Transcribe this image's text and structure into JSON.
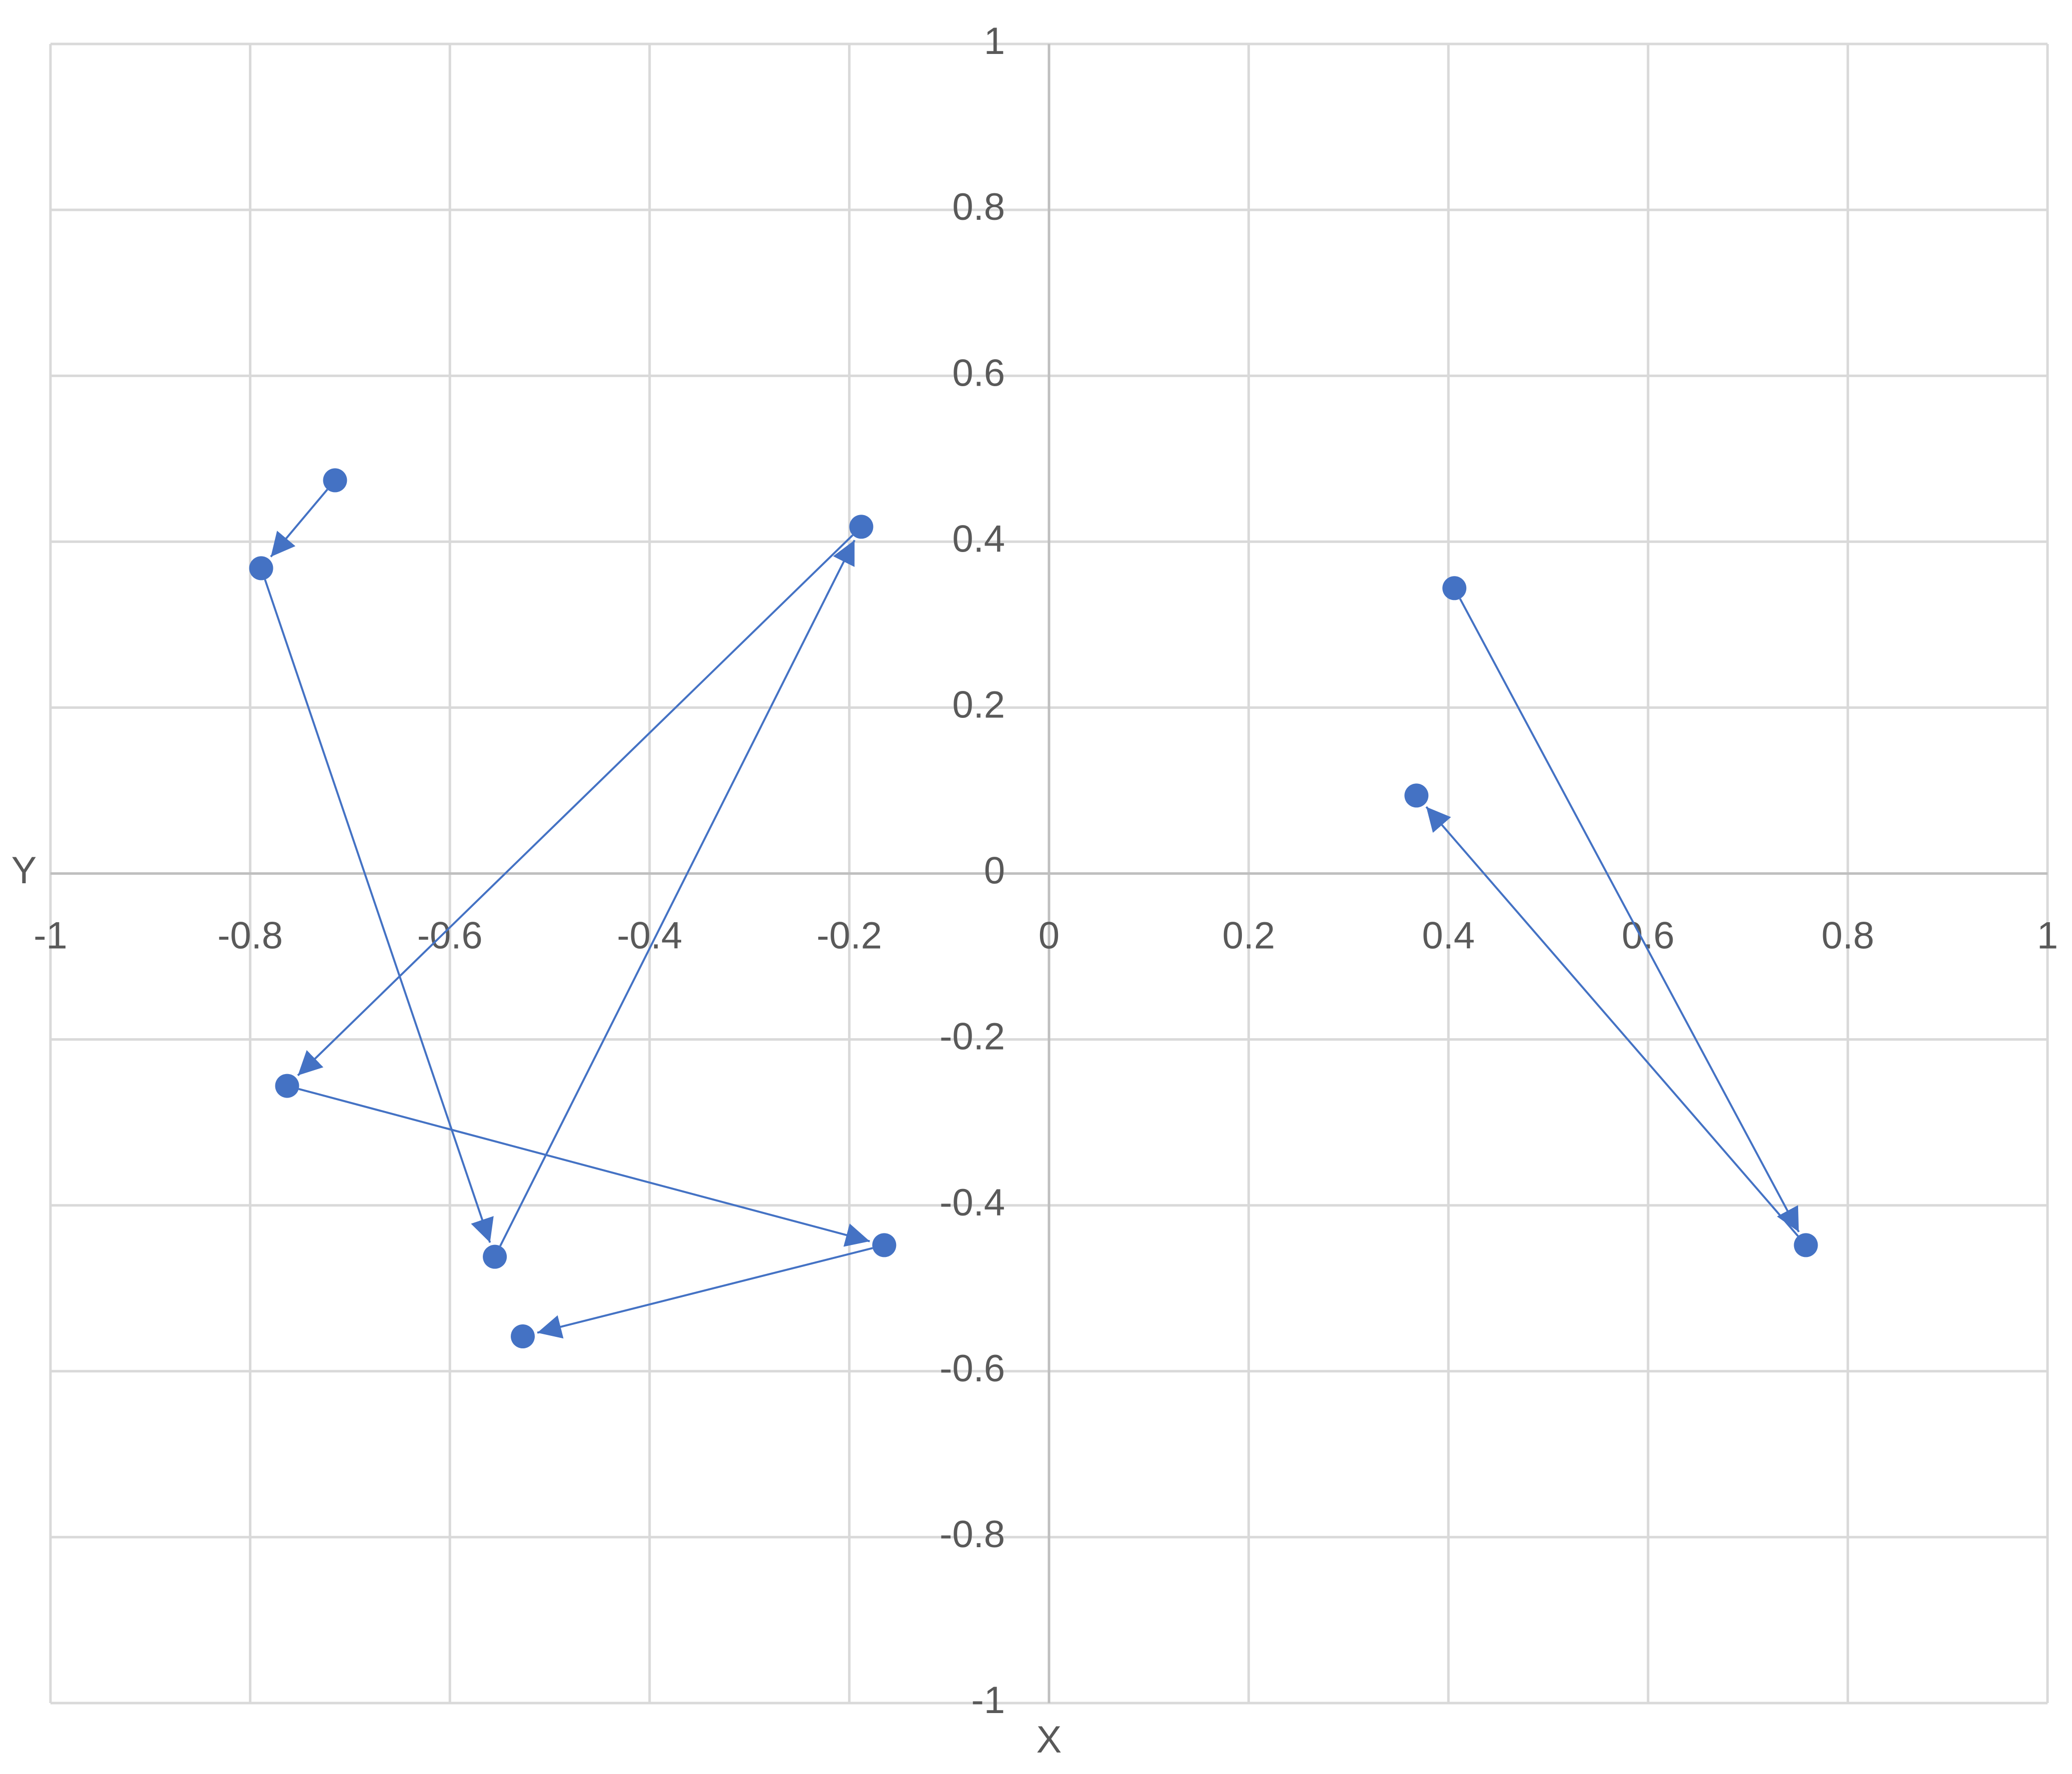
{
  "chart_data": {
    "type": "scatter",
    "x_label": "X",
    "y_label": "Y",
    "xlim": [
      -1,
      1
    ],
    "ylim": [
      -1,
      1
    ],
    "xticks": [
      -1,
      -0.8,
      -0.6,
      -0.4,
      -0.2,
      0,
      0.2,
      0.4,
      0.6,
      0.8,
      1
    ],
    "yticks": [
      -1,
      -0.8,
      -0.6,
      -0.4,
      -0.2,
      0,
      0.2,
      0.4,
      0.6,
      0.8,
      1
    ],
    "grid": true,
    "connect_with_arrows": true,
    "series": [
      {
        "color": "#4472c4",
        "x": [
          -0.715,
          -0.789,
          -0.555,
          -0.188,
          -0.763,
          -0.165,
          -0.527
        ],
        "values": [
          0.474,
          0.368,
          -0.462,
          0.418,
          -0.256,
          -0.448,
          -0.558
        ]
      },
      {
        "color": "#4472c4",
        "x": [
          0.406,
          0.758,
          0.368
        ],
        "values": [
          0.344,
          -0.448,
          0.094
        ]
      }
    ]
  }
}
